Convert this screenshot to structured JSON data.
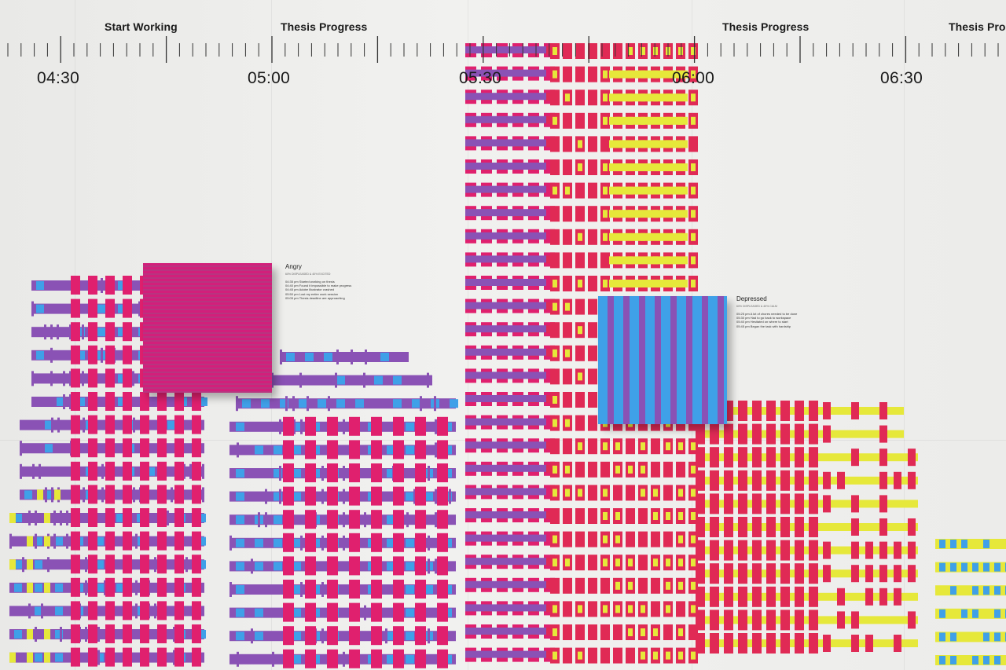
{
  "timeline": {
    "events": [
      "Start Working",
      "Thesis Progress",
      "Thesis Progress",
      "Thesis Progress"
    ],
    "times": [
      "04:30",
      "05:00",
      "05:30",
      "06:00",
      "06:30"
    ]
  },
  "artworks": {
    "angry": {
      "title": "Angry",
      "subtitle": "60% DISPLEASED & 40% EXCITED",
      "entries": [
        "04:35 pm  Started working on thesis",
        "04:40 pm  Found it impossible to make progress",
        "04:45 pm  Adobe Illustrator crashed",
        "05:50 pm  Lost my entire work session",
        "05:05 pm  Thesis deadline are approaching"
      ]
    },
    "depressed": {
      "title": "Depressed",
      "subtitle": "60% DISPLEASED & 40% CALM",
      "entries": [
        "05:25 pm  A lot of chores needed to be done",
        "05:30 pm  Had to go back to workspace",
        "05:40 pm  Hesitated on where to start",
        "05:45 pm  Began the task with hardship"
      ]
    }
  },
  "colors": {
    "wall": "#ececea",
    "magenta": "#e0206e",
    "purple": "#8a52b5",
    "blue": "#3fa0e8",
    "yellow": "#e6e83a",
    "red": "#e02a55"
  }
}
